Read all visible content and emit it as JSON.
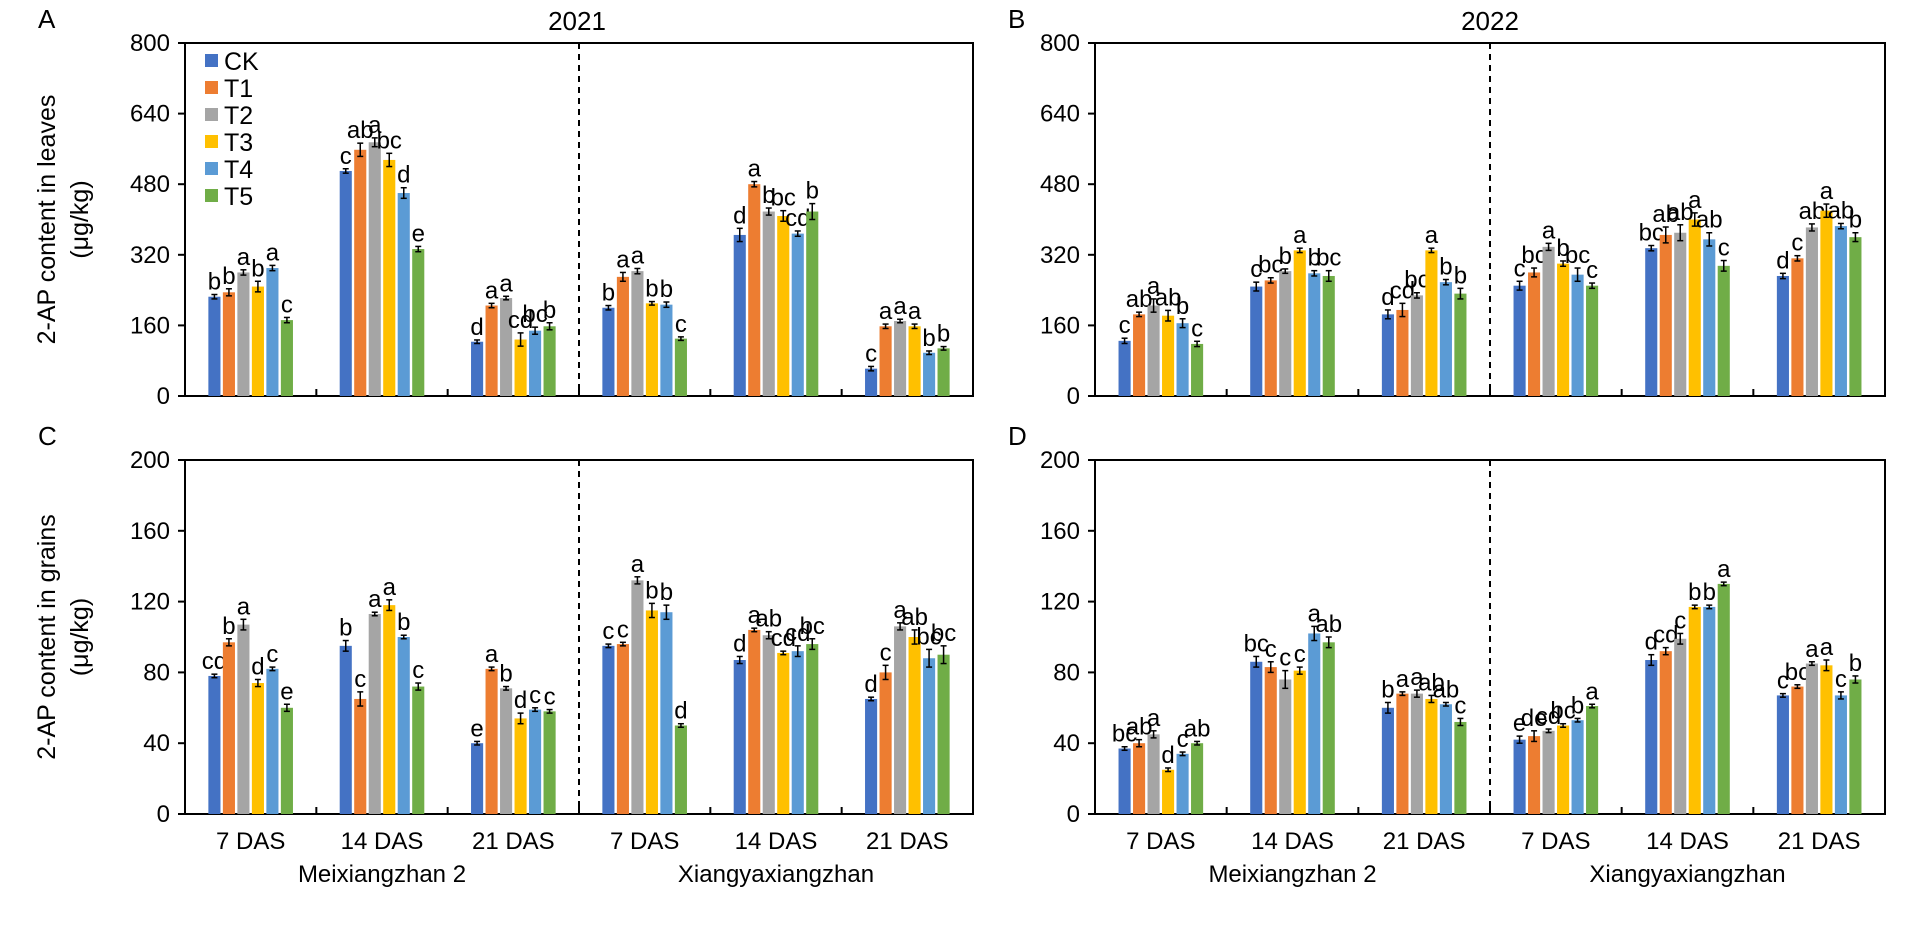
{
  "colors": {
    "CK": "#4472C4",
    "T1": "#ED7D31",
    "T2": "#A5A5A5",
    "T3": "#FFC000",
    "T4": "#5B9BD5",
    "T5": "#70AD47"
  },
  "legend": [
    "CK",
    "T1",
    "T2",
    "T3",
    "T4",
    "T5"
  ],
  "chart_data": [
    {
      "panel": "A",
      "type": "bar",
      "title": "2021",
      "ylabel": [
        "2-AP content in leaves",
        "(μg/kg)"
      ],
      "ylim": [
        0,
        800
      ],
      "yticks": [
        0,
        160,
        320,
        480,
        640,
        800
      ],
      "legend_position": "top-left",
      "categories": [
        "7 DAS",
        "14 DAS",
        "21 DAS",
        "7 DAS",
        "14 DAS",
        "21 DAS"
      ],
      "groups": [
        {
          "label": "Meixiangzhan 2",
          "count": 3
        },
        {
          "label": "Xiangyaxiangzhan",
          "count": 3
        }
      ],
      "series": [
        {
          "name": "CK",
          "values": [
            225,
            510,
            123,
            200,
            365,
            62
          ],
          "errors": [
            5,
            5,
            4,
            5,
            15,
            5
          ],
          "letters": [
            "b",
            "c",
            "d",
            "b",
            "d",
            "c"
          ]
        },
        {
          "name": "T1",
          "values": [
            235,
            558,
            205,
            270,
            480,
            158
          ],
          "errors": [
            8,
            15,
            5,
            10,
            6,
            5
          ],
          "letters": [
            "b",
            "ab",
            "a",
            "a",
            "a",
            "a"
          ]
        },
        {
          "name": "T2",
          "values": [
            280,
            575,
            222,
            283,
            418,
            170
          ],
          "errors": [
            6,
            10,
            4,
            6,
            8,
            4
          ],
          "letters": [
            "a",
            "a",
            "a",
            "a",
            "b",
            "a"
          ]
        },
        {
          "name": "T3",
          "values": [
            248,
            535,
            128,
            210,
            408,
            158
          ],
          "errors": [
            12,
            15,
            15,
            4,
            12,
            5
          ],
          "letters": [
            "b",
            "bc",
            "cd",
            "b",
            "bc",
            "a"
          ]
        },
        {
          "name": "T4",
          "values": [
            290,
            460,
            148,
            207,
            368,
            98
          ],
          "errors": [
            6,
            12,
            8,
            6,
            6,
            4
          ],
          "letters": [
            "a",
            "d",
            "bc",
            "b",
            "cd",
            "b"
          ]
        },
        {
          "name": "T5",
          "values": [
            172,
            333,
            158,
            130,
            418,
            108
          ],
          "errors": [
            6,
            6,
            8,
            4,
            18,
            4
          ],
          "letters": [
            "c",
            "e",
            "b",
            "c",
            "b",
            "b"
          ]
        }
      ]
    },
    {
      "panel": "B",
      "type": "bar",
      "title": "2022",
      "ylabel": [],
      "ylim": [
        0,
        800
      ],
      "yticks": [
        0,
        160,
        320,
        480,
        640,
        800
      ],
      "categories": [
        "7 DAS",
        "14 DAS",
        "21 DAS",
        "7 DAS",
        "14 DAS",
        "21 DAS"
      ],
      "groups": [
        {
          "label": "Meixiangzhan 2",
          "count": 3
        },
        {
          "label": "Xiangyaxiangzhan",
          "count": 3
        }
      ],
      "series": [
        {
          "name": "CK",
          "values": [
            125,
            248,
            185,
            250,
            335,
            272
          ],
          "errors": [
            6,
            10,
            10,
            10,
            6,
            6
          ],
          "letters": [
            "c",
            "c",
            "d",
            "c",
            "bc",
            "d"
          ]
        },
        {
          "name": "T1",
          "values": [
            185,
            262,
            195,
            280,
            365,
            312
          ],
          "errors": [
            5,
            6,
            15,
            10,
            18,
            6
          ],
          "letters": [
            "ab",
            "bc",
            "cd",
            "bc",
            "ab",
            "c"
          ]
        },
        {
          "name": "T2",
          "values": [
            205,
            283,
            228,
            338,
            370,
            382
          ],
          "errors": [
            15,
            5,
            6,
            8,
            18,
            8
          ],
          "letters": [
            "a",
            "b",
            "bc",
            "a",
            "ab",
            "ab"
          ]
        },
        {
          "name": "T3",
          "values": [
            182,
            330,
            330,
            300,
            400,
            420
          ],
          "errors": [
            12,
            5,
            5,
            6,
            15,
            15
          ],
          "letters": [
            "ab",
            "a",
            "a",
            "b",
            "a",
            "a"
          ]
        },
        {
          "name": "T4",
          "values": [
            165,
            278,
            258,
            275,
            355,
            385
          ],
          "errors": [
            10,
            6,
            6,
            15,
            15,
            6
          ],
          "letters": [
            "b",
            "b",
            "b",
            "bc",
            "ab",
            "ab"
          ]
        },
        {
          "name": "T5",
          "values": [
            118,
            272,
            232,
            250,
            295,
            360
          ],
          "errors": [
            6,
            12,
            12,
            6,
            12,
            10
          ],
          "letters": [
            "c",
            "bc",
            "b",
            "c",
            "c",
            "b"
          ]
        }
      ]
    },
    {
      "panel": "C",
      "type": "bar",
      "title": "",
      "ylabel": [
        "2-AP content in grains",
        "(μg/kg)"
      ],
      "ylim": [
        0,
        200
      ],
      "yticks": [
        0,
        40,
        80,
        120,
        160,
        200
      ],
      "categories": [
        "7 DAS",
        "14 DAS",
        "21 DAS",
        "7 DAS",
        "14 DAS",
        "21 DAS"
      ],
      "groups": [
        {
          "label": "Meixiangzhan 2",
          "count": 3
        },
        {
          "label": "Xiangyaxiangzhan",
          "count": 3
        }
      ],
      "series": [
        {
          "name": "CK",
          "values": [
            78,
            95,
            40,
            95,
            87,
            65
          ],
          "errors": [
            1,
            3,
            1,
            1,
            2,
            1
          ],
          "letters": [
            "cd",
            "b",
            "e",
            "c",
            "d",
            "d"
          ]
        },
        {
          "name": "T1",
          "values": [
            97,
            65,
            82,
            96,
            104,
            80
          ],
          "errors": [
            2,
            4,
            1,
            1,
            1,
            4
          ],
          "letters": [
            "b",
            "c",
            "a",
            "c",
            "a",
            "c"
          ]
        },
        {
          "name": "T2",
          "values": [
            107,
            113,
            71,
            132,
            101,
            106
          ],
          "errors": [
            3,
            1,
            1,
            2,
            2,
            2
          ],
          "letters": [
            "a",
            "a",
            "b",
            "a",
            "ab",
            "a"
          ]
        },
        {
          "name": "T3",
          "values": [
            74,
            118,
            54,
            115,
            91,
            100
          ],
          "errors": [
            2,
            3,
            3,
            4,
            1,
            4
          ],
          "letters": [
            "d",
            "a",
            "d",
            "b",
            "cd",
            "ab"
          ]
        },
        {
          "name": "T4",
          "values": [
            82,
            100,
            59,
            114,
            92,
            88
          ],
          "errors": [
            1,
            1,
            1,
            4,
            3,
            5
          ],
          "letters": [
            "c",
            "b",
            "c",
            "b",
            "cd",
            "bc"
          ]
        },
        {
          "name": "T5",
          "values": [
            60,
            72,
            58,
            50,
            96,
            90
          ],
          "errors": [
            2,
            2,
            1,
            1,
            3,
            5
          ],
          "letters": [
            "e",
            "c",
            "c",
            "d",
            "bc",
            "bc"
          ]
        }
      ]
    },
    {
      "panel": "D",
      "type": "bar",
      "title": "",
      "ylabel": [],
      "ylim": [
        0,
        200
      ],
      "yticks": [
        0,
        40,
        80,
        120,
        160,
        200
      ],
      "categories": [
        "7 DAS",
        "14 DAS",
        "21 DAS",
        "7 DAS",
        "14 DAS",
        "21 DAS"
      ],
      "groups": [
        {
          "label": "Meixiangzhan 2",
          "count": 3
        },
        {
          "label": "Xiangyaxiangzhan",
          "count": 3
        }
      ],
      "series": [
        {
          "name": "CK",
          "values": [
            37,
            86,
            60,
            42,
            87,
            67
          ],
          "errors": [
            1,
            3,
            3,
            2,
            3,
            1
          ],
          "letters": [
            "bc",
            "bc",
            "b",
            "e",
            "d",
            "c"
          ]
        },
        {
          "name": "T1",
          "values": [
            40,
            83,
            68,
            44,
            92,
            72
          ],
          "errors": [
            2,
            3,
            1,
            3,
            2,
            1
          ],
          "letters": [
            "ab",
            "c",
            "a",
            "de",
            "cd",
            "bc"
          ]
        },
        {
          "name": "T2",
          "values": [
            45,
            76,
            68,
            47,
            99,
            85
          ],
          "errors": [
            2,
            5,
            2,
            1,
            3,
            1
          ],
          "letters": [
            "a",
            "c",
            "a",
            "cd",
            "c",
            "a"
          ]
        },
        {
          "name": "T3",
          "values": [
            25,
            81,
            65,
            50,
            117,
            84
          ],
          "errors": [
            1,
            2,
            2,
            1,
            1,
            3
          ],
          "letters": [
            "d",
            "c",
            "ab",
            "bc",
            "b",
            "a"
          ]
        },
        {
          "name": "T4",
          "values": [
            34,
            102,
            62,
            53,
            117,
            67
          ],
          "errors": [
            1,
            4,
            1,
            1,
            1,
            2
          ],
          "letters": [
            "c",
            "a",
            "ab",
            "b",
            "b",
            "c"
          ]
        },
        {
          "name": "T5",
          "values": [
            40,
            97,
            52,
            61,
            130,
            76
          ],
          "errors": [
            1,
            3,
            2,
            1,
            1,
            2
          ],
          "letters": [
            "ab",
            "ab",
            "c",
            "a",
            "a",
            "b"
          ]
        }
      ]
    }
  ]
}
